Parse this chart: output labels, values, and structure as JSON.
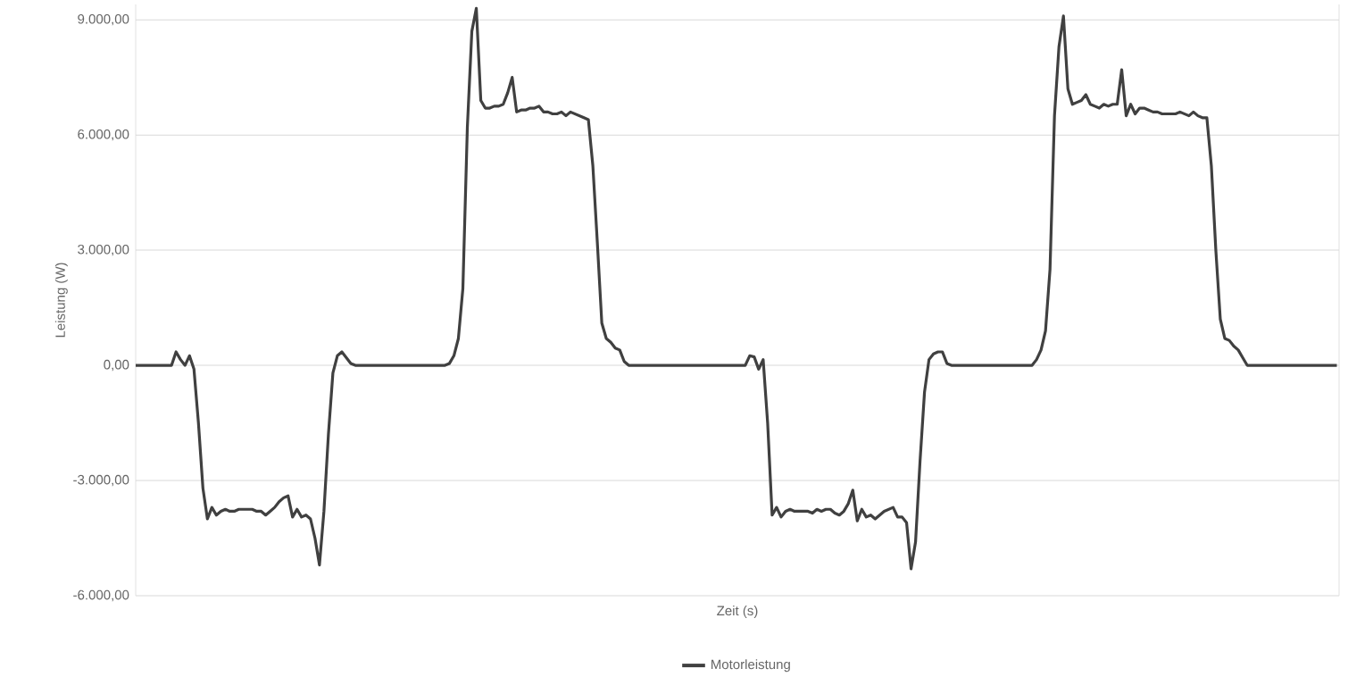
{
  "chart_data": {
    "type": "line",
    "xlabel": "Zeit (s)",
    "ylabel": "Leistung (W)",
    "categories": [
      null,
      null,
      null,
      null,
      null,
      null,
      null,
      null,
      null,
      null,
      null,
      null,
      null,
      null,
      null,
      null,
      null,
      null,
      null,
      null,
      null,
      null,
      null,
      null,
      null,
      null,
      null,
      null,
      null,
      null,
      null,
      null,
      null,
      null,
      null,
      null,
      null,
      null,
      null,
      null,
      null,
      null,
      null,
      null,
      null,
      null,
      null,
      null,
      null,
      null,
      null,
      null,
      null,
      null,
      null,
      null,
      null,
      null,
      null,
      null,
      null,
      null,
      null,
      null,
      null,
      null,
      null,
      null,
      null,
      null,
      null,
      null,
      null,
      null,
      null,
      null,
      null,
      null,
      null,
      null,
      null,
      null,
      null,
      null,
      null,
      null,
      null,
      null,
      null,
      null,
      null,
      null,
      null,
      null,
      null,
      null,
      null,
      null,
      null,
      null,
      null,
      null,
      null,
      null,
      null,
      null,
      null,
      null,
      null,
      null,
      null,
      null,
      null,
      null,
      null,
      null,
      null,
      null,
      null,
      null,
      null,
      null,
      null,
      null,
      null,
      null,
      null,
      null,
      null,
      null,
      null,
      null,
      null,
      null,
      null,
      null,
      null,
      null,
      null,
      null,
      null,
      null,
      null,
      null,
      null,
      null,
      null,
      null,
      null,
      null,
      null,
      null,
      null,
      null,
      null,
      null,
      null,
      null,
      null,
      null,
      null,
      null,
      null,
      null,
      null,
      null,
      null,
      null,
      null,
      null,
      null,
      null,
      null,
      null,
      null,
      null,
      null,
      null,
      null,
      null,
      null,
      null,
      null,
      null,
      null,
      null,
      null,
      null,
      null,
      null,
      null,
      null,
      null,
      null,
      null,
      null,
      null,
      null,
      null,
      null,
      null,
      null,
      null,
      null,
      null,
      null,
      null,
      null,
      null,
      null,
      null,
      null,
      null,
      null,
      null,
      null,
      null,
      null,
      null,
      null,
      null,
      null,
      null,
      null,
      null,
      null,
      null,
      null,
      null,
      null,
      null,
      null,
      null,
      null,
      null,
      null,
      null,
      null,
      null,
      null,
      null,
      null,
      null,
      null,
      null,
      null,
      null,
      null,
      null,
      null,
      null,
      null,
      null,
      null,
      null,
      null,
      null,
      null,
      null,
      null,
      null,
      null,
      null,
      null,
      null,
      null,
      null,
      null,
      null
    ],
    "series": [
      {
        "name": "Motorleistung",
        "color": "#404040",
        "values": [
          0,
          0,
          0,
          0,
          0,
          0,
          0,
          0,
          0,
          350,
          150,
          0,
          250,
          -100,
          -1500,
          -3200,
          -4000,
          -3700,
          -3900,
          -3800,
          -3750,
          -3800,
          -3800,
          -3750,
          -3750,
          -3750,
          -3750,
          -3800,
          -3800,
          -3900,
          -3800,
          -3700,
          -3550,
          -3450,
          -3400,
          -3950,
          -3750,
          -3950,
          -3900,
          -4000,
          -4500,
          -5200,
          -3800,
          -1800,
          -200,
          250,
          350,
          200,
          50,
          0,
          0,
          0,
          0,
          0,
          0,
          0,
          0,
          0,
          0,
          0,
          0,
          0,
          0,
          0,
          0,
          0,
          0,
          0,
          0,
          0,
          50,
          250,
          700,
          2000,
          6200,
          8700,
          9300,
          6900,
          6700,
          6700,
          6750,
          6750,
          6800,
          7100,
          7500,
          6600,
          6650,
          6650,
          6700,
          6700,
          6750,
          6600,
          6600,
          6550,
          6550,
          6600,
          6500,
          6600,
          6550,
          6500,
          6450,
          6400,
          5200,
          3200,
          1100,
          700,
          600,
          450,
          400,
          100,
          0,
          0,
          0,
          0,
          0,
          0,
          0,
          0,
          0,
          0,
          0,
          0,
          0,
          0,
          0,
          0,
          0,
          0,
          0,
          0,
          0,
          0,
          0,
          0,
          0,
          0,
          0,
          250,
          220,
          -100,
          150,
          -1500,
          -3900,
          -3700,
          -3950,
          -3800,
          -3750,
          -3800,
          -3800,
          -3800,
          -3800,
          -3850,
          -3750,
          -3800,
          -3750,
          -3750,
          -3850,
          -3900,
          -3800,
          -3600,
          -3250,
          -4050,
          -3750,
          -3950,
          -3900,
          -4000,
          -3900,
          -3800,
          -3750,
          -3700,
          -3950,
          -3950,
          -4100,
          -5300,
          -4600,
          -2500,
          -700,
          150,
          300,
          350,
          350,
          50,
          0,
          0,
          0,
          0,
          0,
          0,
          0,
          0,
          0,
          0,
          0,
          0,
          0,
          0,
          0,
          0,
          0,
          0,
          0,
          150,
          400,
          900,
          2500,
          6500,
          8300,
          9100,
          7200,
          6800,
          6850,
          6900,
          7050,
          6800,
          6750,
          6700,
          6800,
          6750,
          6800,
          6800,
          7700,
          6500,
          6800,
          6550,
          6700,
          6700,
          6650,
          6600,
          6600,
          6550,
          6550,
          6550,
          6550,
          6600,
          6550,
          6500,
          6600,
          6500,
          6450,
          6450,
          5200,
          3000,
          1200,
          700,
          650,
          500,
          400,
          200,
          0,
          0,
          0,
          0,
          0,
          0,
          0,
          0,
          0,
          0,
          0,
          0,
          0,
          0,
          0,
          0,
          0,
          0,
          0,
          0,
          0
        ]
      }
    ],
    "ylim": [
      -6000,
      9400
    ],
    "yticks": [
      {
        "value": -6000,
        "label": "-6.000,00"
      },
      {
        "value": -3000,
        "label": "-3.000,00"
      },
      {
        "value": 0,
        "label": "0,00"
      },
      {
        "value": 3000,
        "label": "3.000,00"
      },
      {
        "value": 6000,
        "label": "6.000,00"
      },
      {
        "value": 9000,
        "label": "9.000,00"
      }
    ],
    "grid": "y",
    "legend": "bottom",
    "marker": "none",
    "line_style": "solid",
    "tick_labels": "y"
  }
}
